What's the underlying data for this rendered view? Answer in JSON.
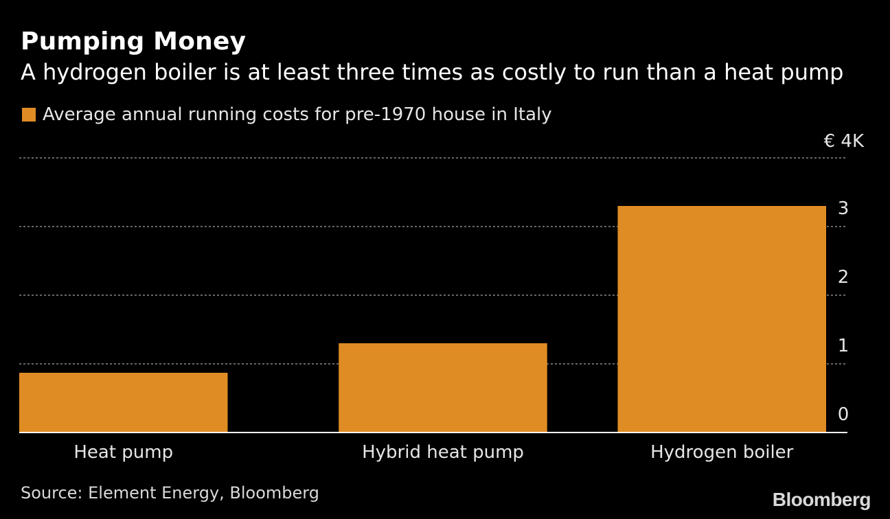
{
  "title": "Pumping Money",
  "subtitle": "A hydrogen boiler is at least three times as costly to run than a heat pump",
  "legend": {
    "label": "Average annual running costs for pre-1970 house in Italy",
    "color": "#e08c24"
  },
  "source": "Source: Element Energy, Bloomberg",
  "brand": "Bloomberg",
  "colors": {
    "background": "#000000",
    "bar": "#e08c24",
    "grid": "#8a8a8a",
    "text": "#ffffff"
  },
  "chart_data": {
    "type": "bar",
    "categories": [
      "Heat pump",
      "Hybrid heat pump",
      "Hydrogen boiler"
    ],
    "values": [
      0.87,
      1.3,
      3.3
    ],
    "ylim": [
      0,
      4
    ],
    "yticks": [
      0,
      1,
      2,
      3,
      4
    ],
    "ytick_labels": [
      "0",
      "1",
      "2",
      "3",
      "€ 4K"
    ],
    "ytick_side": "right",
    "grid": true,
    "xlabel": "",
    "ylabel": ""
  }
}
